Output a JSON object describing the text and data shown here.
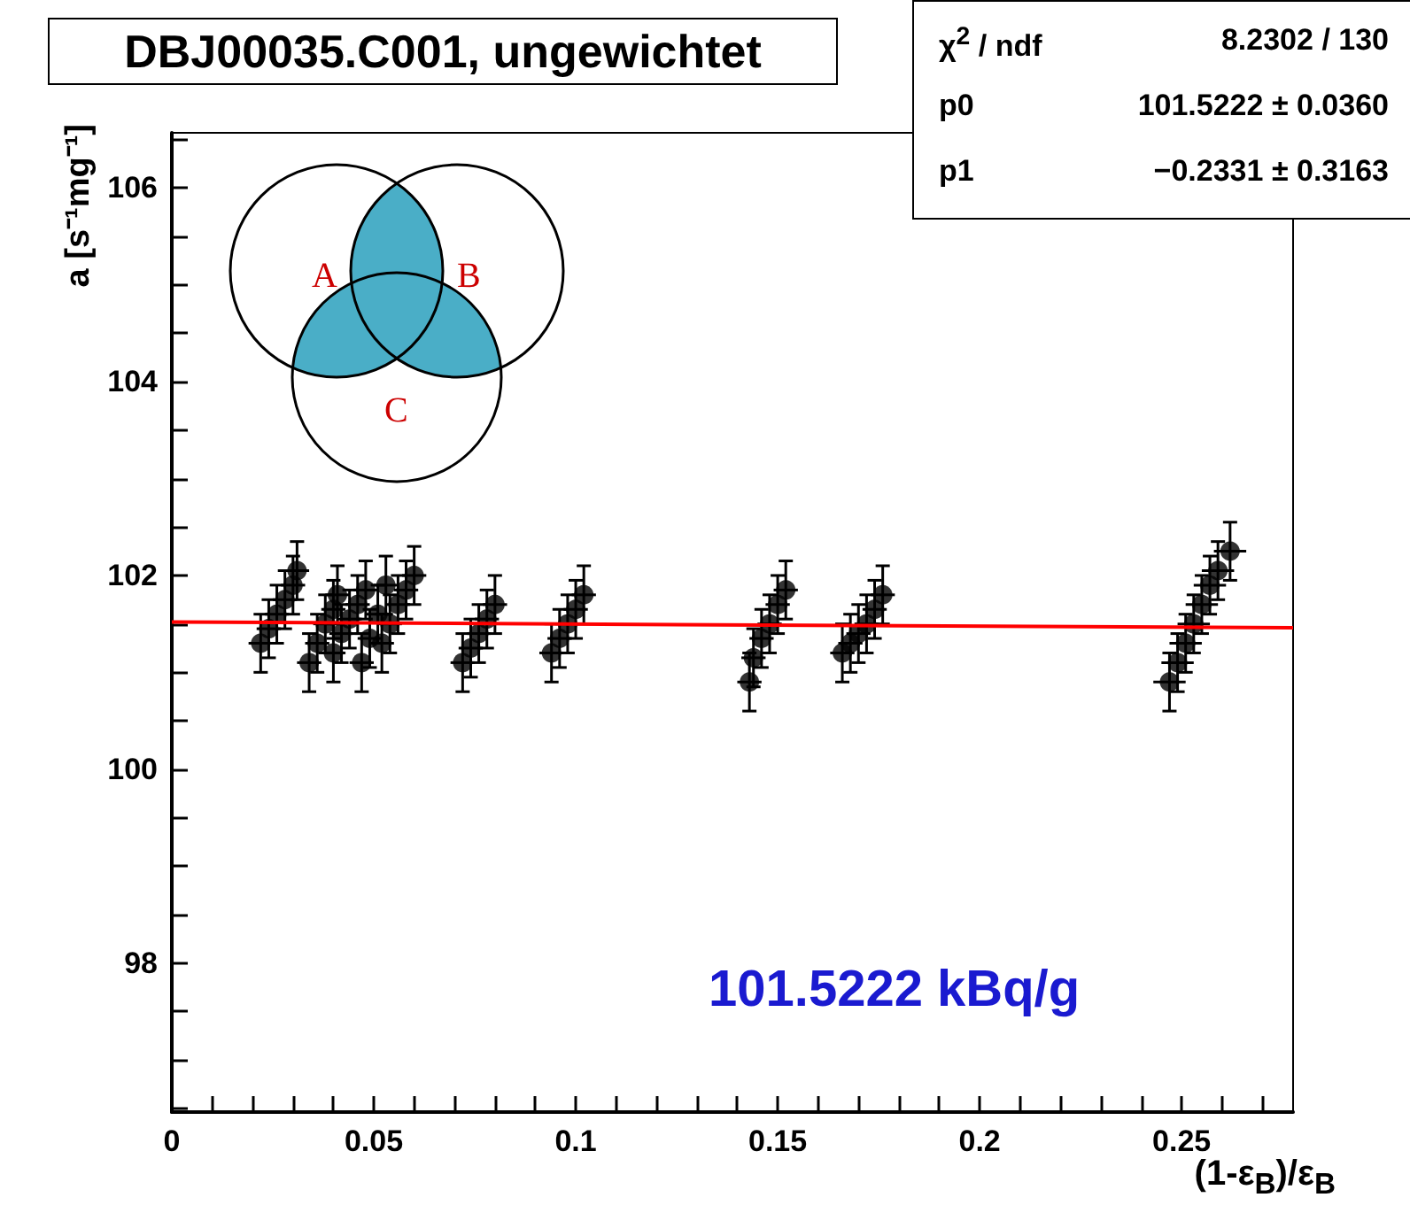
{
  "chart_data": {
    "type": "scatter",
    "title": "DBJ00035.C001, ungewichtet",
    "xlabel": "(1-ε$_{B}$)/ε$_{B}$",
    "ylabel": "a [s⁻¹mg⁻¹]",
    "annotations": [
      "χ$^{2}$ / ndf",
      "8.2302 / 130",
      "p0",
      "101.5222 ± 0.0360",
      "p1",
      "−0.2331 ± 0.3163",
      "101.5222 kBq/g",
      "A",
      "B",
      "C"
    ],
    "series": [
      {
        "marker": "circle",
        "color": "#000000",
        "x": [
          0.022,
          0.024,
          0.026,
          0.028,
          0.03,
          0.031,
          0.034,
          0.036,
          0.038,
          0.04,
          0.041,
          0.04,
          0.042,
          0.044,
          0.046,
          0.048,
          0.047,
          0.049,
          0.051,
          0.053,
          0.052,
          0.054,
          0.056,
          0.058,
          0.06,
          0.072,
          0.074,
          0.076,
          0.078,
          0.08,
          0.094,
          0.096,
          0.098,
          0.1,
          0.102,
          0.143,
          0.144,
          0.146,
          0.148,
          0.15,
          0.152,
          0.166,
          0.168,
          0.17,
          0.172,
          0.174,
          0.176,
          0.247,
          0.249,
          0.251,
          0.253,
          0.255,
          0.257,
          0.259,
          0.262
        ],
        "values": [
          101.3,
          101.45,
          101.6,
          101.75,
          101.9,
          102.05,
          101.1,
          101.3,
          101.5,
          101.65,
          101.8,
          101.2,
          101.4,
          101.55,
          101.7,
          101.85,
          101.1,
          101.35,
          101.6,
          101.9,
          101.3,
          101.5,
          101.7,
          101.85,
          102.0,
          101.1,
          101.25,
          101.4,
          101.55,
          101.7,
          101.2,
          101.35,
          101.5,
          101.65,
          101.8,
          100.9,
          101.15,
          101.35,
          101.5,
          101.7,
          101.85,
          101.2,
          101.3,
          101.4,
          101.5,
          101.65,
          101.8,
          100.9,
          101.1,
          101.3,
          101.5,
          101.7,
          101.9,
          102.05,
          102.25
        ],
        "errors": [
          0.3,
          0.3,
          0.3,
          0.3,
          0.3,
          0.3,
          0.3,
          0.3,
          0.3,
          0.3,
          0.3,
          0.3,
          0.3,
          0.3,
          0.3,
          0.3,
          0.3,
          0.3,
          0.3,
          0.3,
          0.3,
          0.3,
          0.3,
          0.3,
          0.3,
          0.3,
          0.3,
          0.3,
          0.3,
          0.3,
          0.3,
          0.3,
          0.3,
          0.3,
          0.3,
          0.3,
          0.3,
          0.3,
          0.3,
          0.3,
          0.3,
          0.3,
          0.3,
          0.3,
          0.3,
          0.3,
          0.3,
          0.3,
          0.3,
          0.3,
          0.3,
          0.3,
          0.3,
          0.3,
          0.3
        ],
        "xerrors": [
          0.003,
          0.003,
          0.003,
          0.003,
          0.003,
          0.003,
          0.003,
          0.003,
          0.003,
          0.003,
          0.003,
          0.003,
          0.003,
          0.003,
          0.003,
          0.003,
          0.003,
          0.003,
          0.003,
          0.003,
          0.003,
          0.003,
          0.003,
          0.003,
          0.003,
          0.003,
          0.003,
          0.003,
          0.003,
          0.003,
          0.003,
          0.003,
          0.003,
          0.003,
          0.003,
          0.003,
          0.003,
          0.003,
          0.003,
          0.003,
          0.003,
          0.003,
          0.003,
          0.003,
          0.003,
          0.003,
          0.003,
          0.004,
          0.004,
          0.004,
          0.004,
          0.004,
          0.004,
          0.004,
          0.004
        ]
      },
      {
        "type": "line",
        "color": "#ff0000",
        "x": [
          0,
          0.2776
        ],
        "values": [
          101.52,
          101.46
        ]
      }
    ],
    "xlim": [
      0,
      0.2776
    ],
    "xticks": [
      0,
      {
        "value": 0.01,
        "label": null
      },
      {
        "value": 0.02,
        "label": null
      },
      {
        "value": 0.03,
        "label": null
      },
      {
        "value": 0.04,
        "label": null
      },
      0.05,
      {
        "value": 0.06,
        "label": null
      },
      {
        "value": 0.07,
        "label": null
      },
      {
        "value": 0.08,
        "label": null
      },
      {
        "value": 0.09,
        "label": null
      },
      0.1,
      {
        "value": 0.11,
        "label": null
      },
      {
        "value": 0.12,
        "label": null
      },
      {
        "value": 0.13,
        "label": null
      },
      {
        "value": 0.14,
        "label": null
      },
      0.15,
      {
        "value": 0.16,
        "label": null
      },
      {
        "value": 0.17,
        "label": null
      },
      {
        "value": 0.18,
        "label": null
      },
      {
        "value": 0.19,
        "label": null
      },
      0.2,
      {
        "value": 0.21,
        "label": null
      },
      {
        "value": 0.22,
        "label": null
      },
      {
        "value": 0.23,
        "label": null
      },
      {
        "value": 0.24,
        "label": null
      },
      0.25,
      {
        "value": 0.26,
        "label": null
      },
      {
        "value": 0.27,
        "label": null
      }
    ],
    "ylim": [
      96.46,
      106.57
    ],
    "yticks": [
      {
        "value": 96.5,
        "label": null
      },
      {
        "value": 97,
        "label": null
      },
      {
        "value": 97.5,
        "label": null
      },
      98,
      {
        "value": 98.5,
        "label": null
      },
      {
        "value": 99,
        "label": null
      },
      {
        "value": 99.5,
        "label": null
      },
      100,
      {
        "value": 100.5,
        "label": null
      },
      {
        "value": 101,
        "label": null
      },
      {
        "value": 101.5,
        "label": null
      },
      102,
      {
        "value": 102.5,
        "label": null
      },
      {
        "value": 103,
        "label": null
      },
      {
        "value": 103.5,
        "label": null
      },
      104,
      {
        "value": 104.5,
        "label": null
      },
      {
        "value": 105,
        "label": null
      },
      {
        "value": 105.5,
        "label": null
      },
      106,
      {
        "value": 106.5,
        "label": null
      }
    ]
  }
}
